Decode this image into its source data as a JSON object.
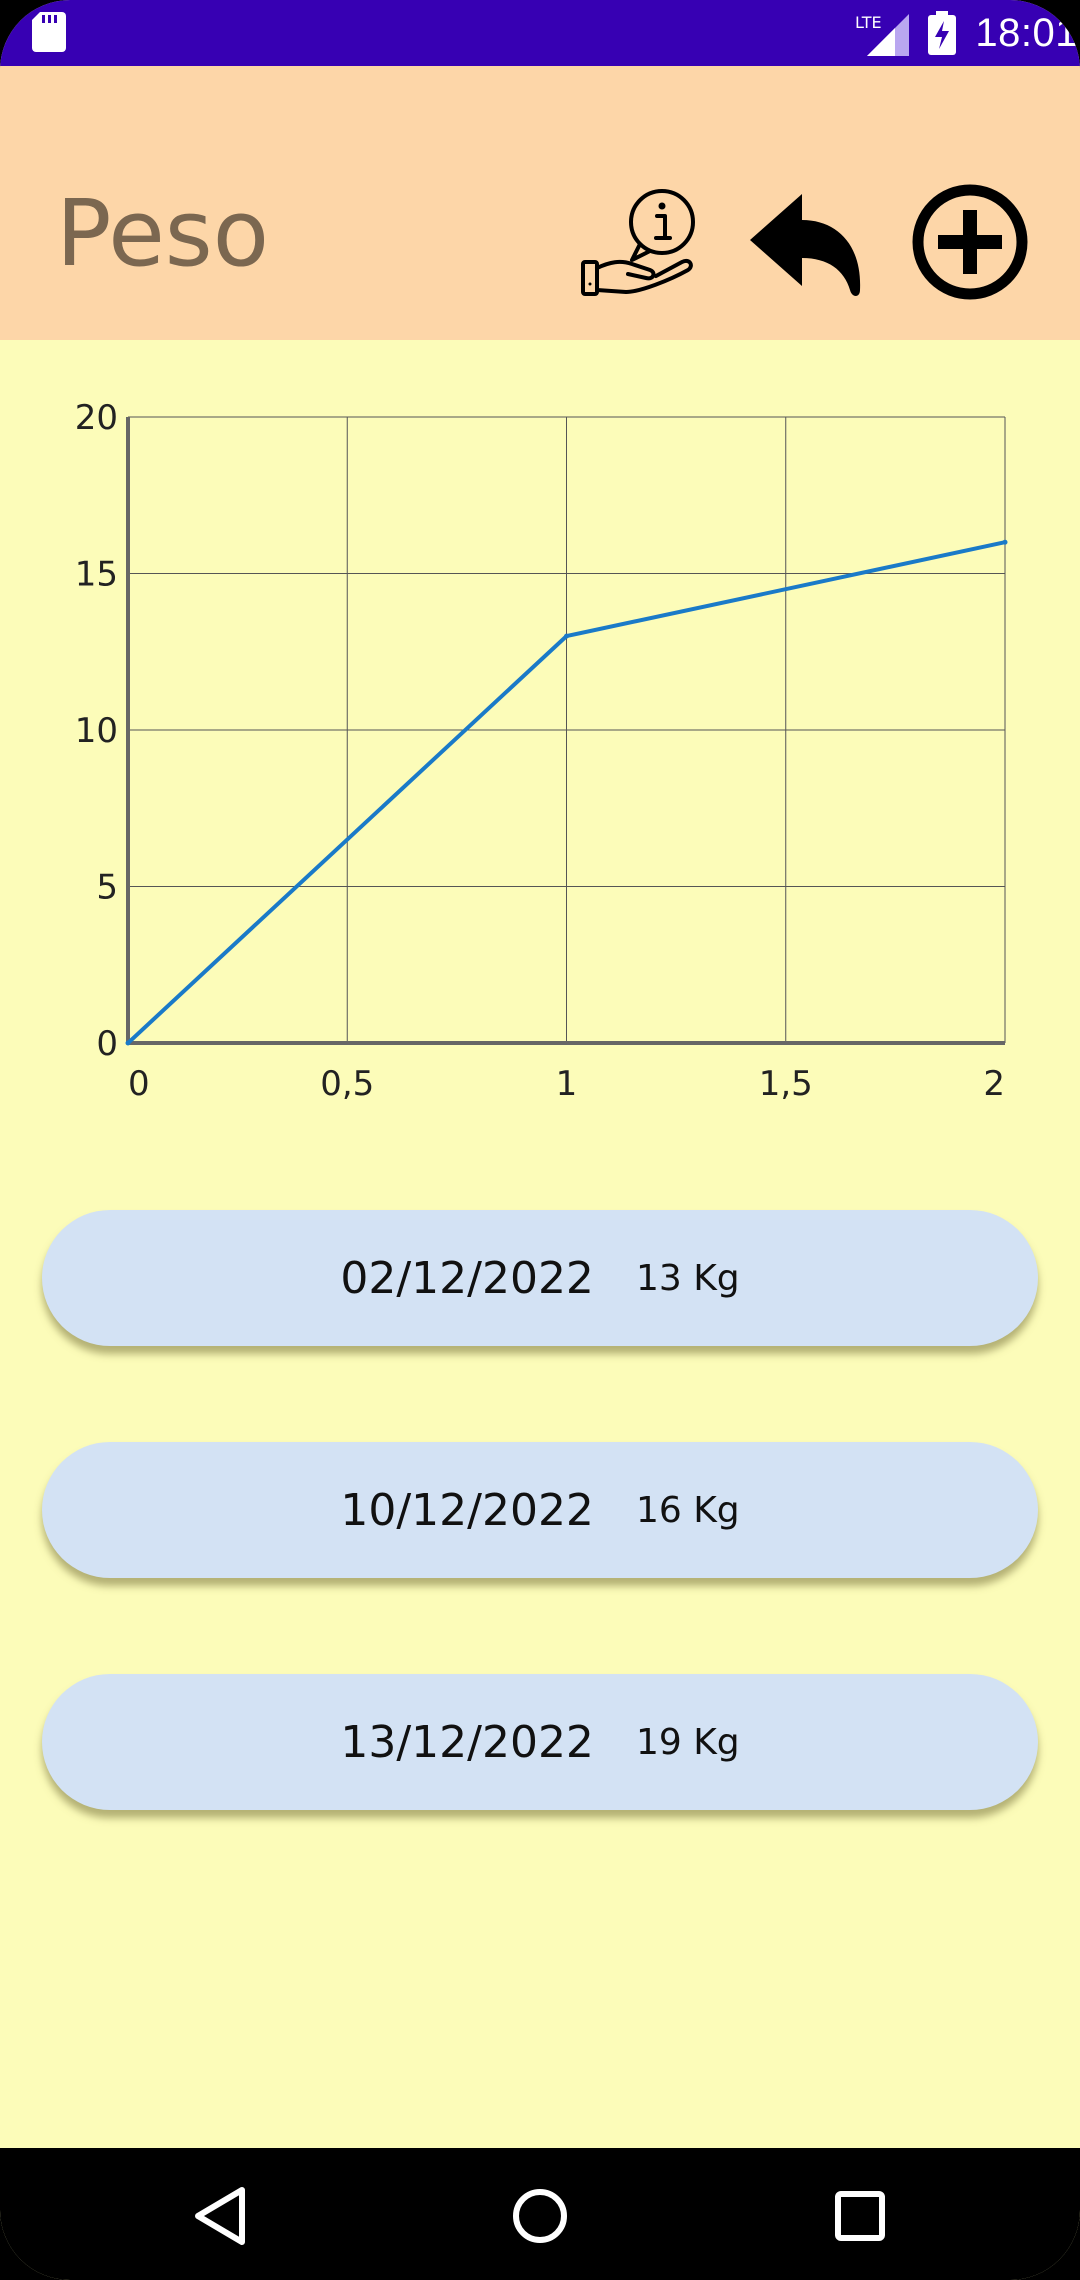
{
  "status_bar": {
    "time": "18:01",
    "network": "LTE",
    "icons": [
      "sd-card-icon",
      "lte-signal-icon",
      "battery-charging-icon"
    ]
  },
  "app_bar": {
    "title": "Peso",
    "background": "#fdd6a8",
    "actions": [
      {
        "name": "info-hand-button",
        "icon": "info-hand-icon"
      },
      {
        "name": "back-button",
        "icon": "reply-arrow-icon"
      },
      {
        "name": "add-button",
        "icon": "plus-circle-icon"
      }
    ]
  },
  "chart_data": {
    "type": "line",
    "x": [
      0,
      1,
      2
    ],
    "series": [
      {
        "values": [
          0,
          13,
          16
        ],
        "color": "#1a7ac8"
      }
    ],
    "xticks": [
      "0",
      "0,5",
      "1",
      "1,5",
      "2"
    ],
    "yticks": [
      "0",
      "5",
      "10",
      "15",
      "20"
    ],
    "xlim": [
      0,
      2
    ],
    "ylim": [
      0,
      20
    ],
    "grid": true,
    "title": "",
    "xlabel": "",
    "ylabel": ""
  },
  "entries": [
    {
      "date": "02/12/2022",
      "weight": "13 Kg"
    },
    {
      "date": "10/12/2022",
      "weight": "16 Kg"
    },
    {
      "date": "13/12/2022",
      "weight": "19 Kg"
    }
  ],
  "nav_bar": {
    "buttons": [
      {
        "name": "nav-back-button",
        "icon": "triangle-back-icon"
      },
      {
        "name": "nav-home-button",
        "icon": "circle-home-icon"
      },
      {
        "name": "nav-recents-button",
        "icon": "square-recents-icon"
      }
    ]
  },
  "colors": {
    "status_bar": "#3700b3",
    "page_background": "#fcfcb9",
    "card_background": "#d3e2f4",
    "line": "#1a7ac8"
  }
}
